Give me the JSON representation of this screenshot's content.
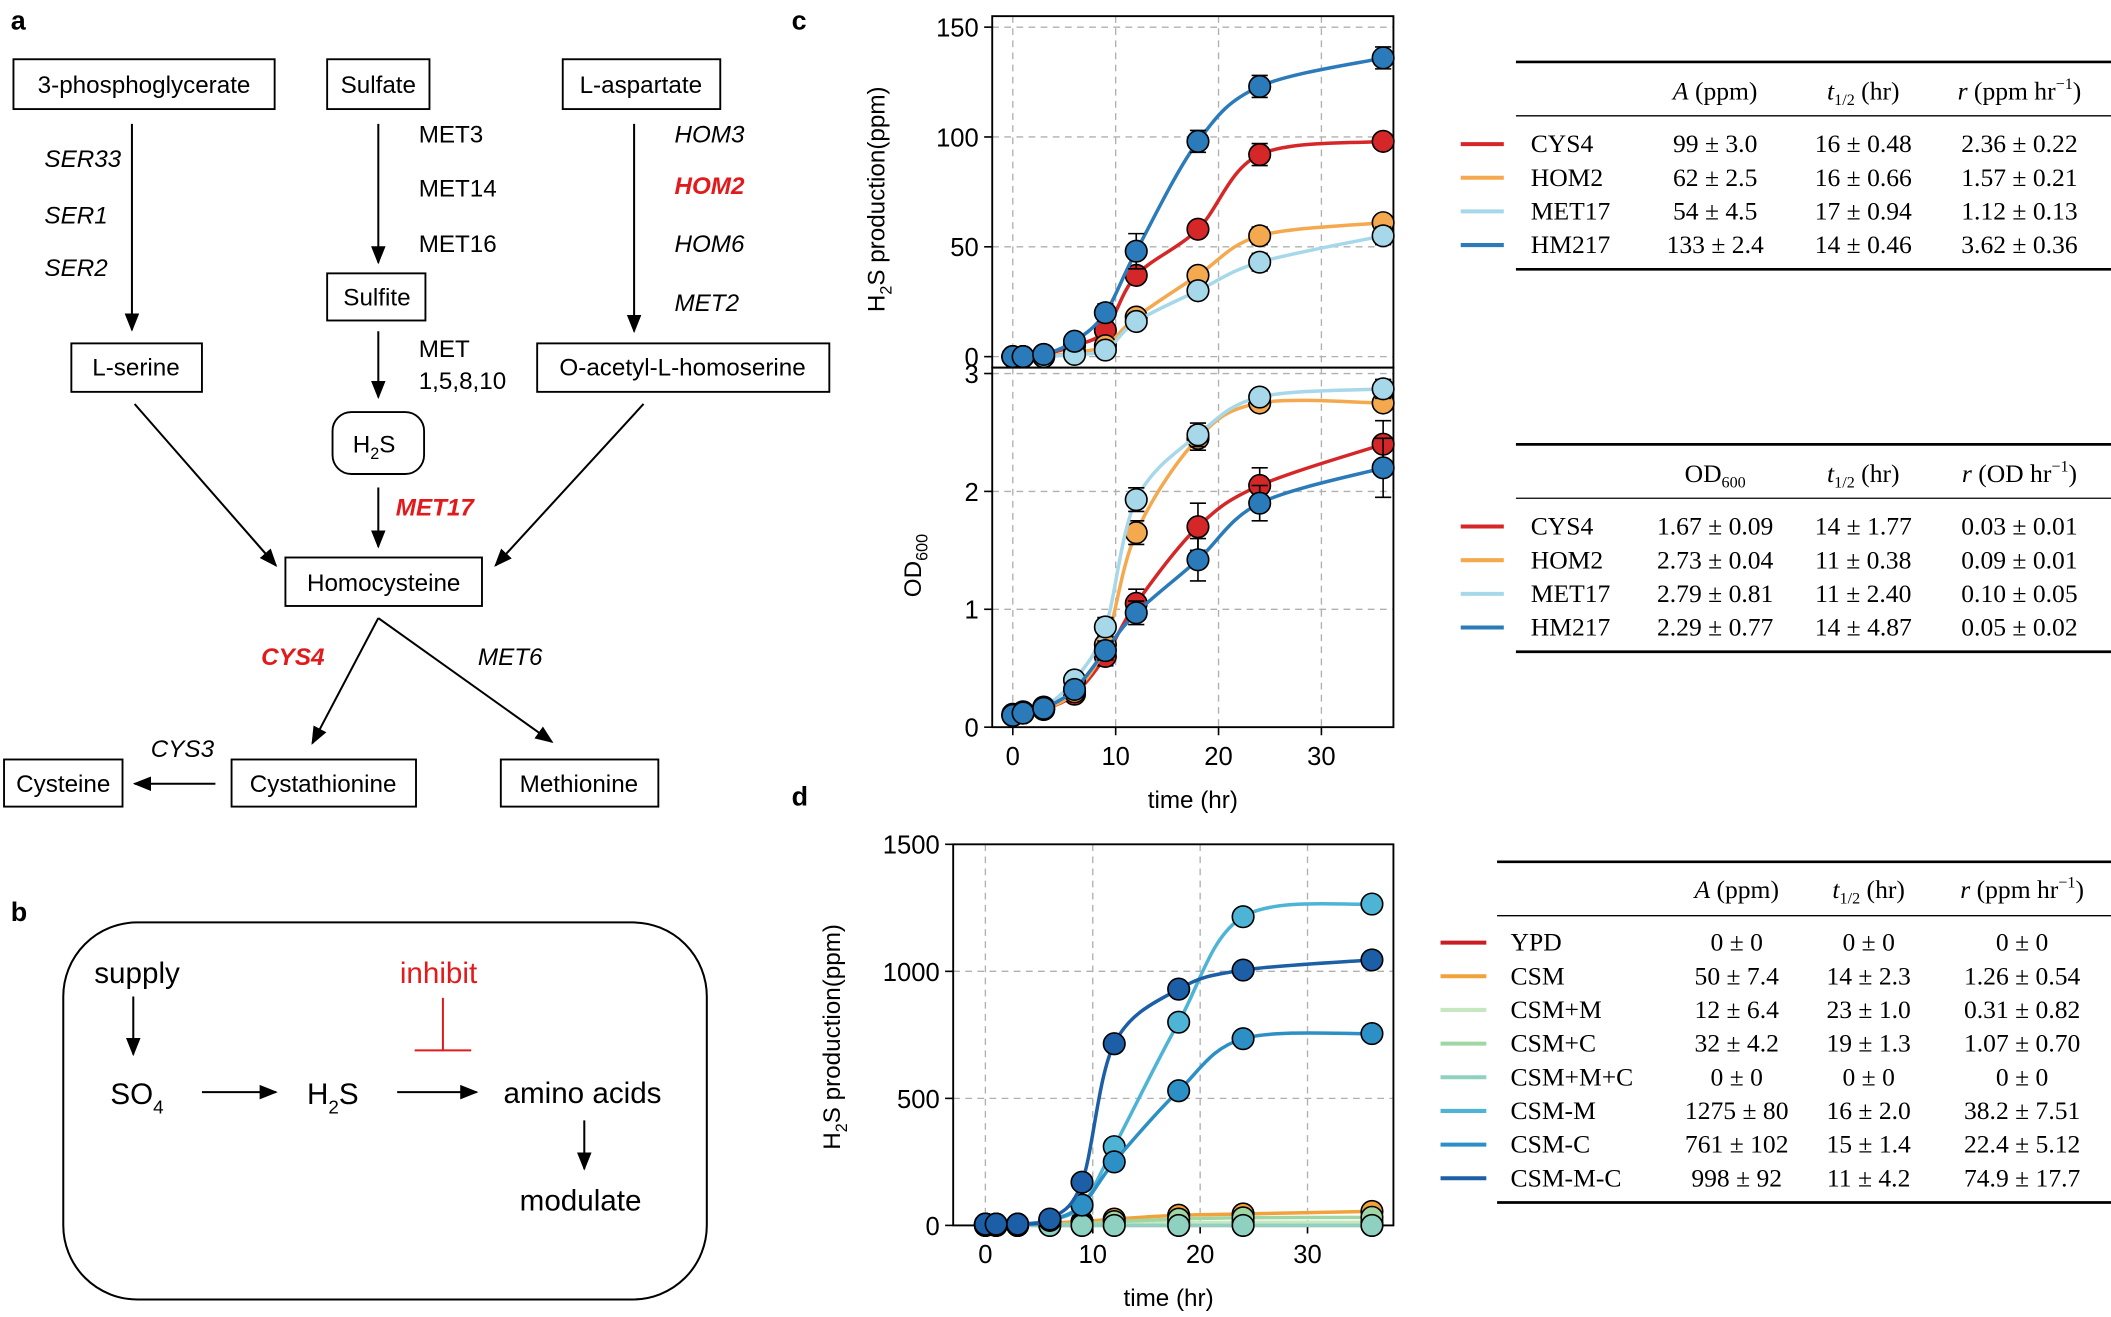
{
  "panel_labels": {
    "a": "a",
    "b": "b",
    "c": "c",
    "d": "d"
  },
  "pathway": {
    "phosphoglycerate": "3-phosphoglycerate",
    "sulfate": "Sulfate",
    "aspartate": "L-aspartate",
    "sulfite": "Sulfite",
    "serine": "L-serine",
    "acetylhomoserine": "O-acetyl-L-homoserine",
    "h2s_main": "H",
    "h2s_sub": "2",
    "h2s_tail": "S",
    "homocysteine": "Homocysteine",
    "cysteine": "Cysteine",
    "cystathionine": "Cystathionine",
    "methionine": "Methionine",
    "ser33": "SER33",
    "ser1": "SER1",
    "ser2": "SER2",
    "met3": "MET3",
    "met14": "MET14",
    "met16": "MET16",
    "met_multi_1": "MET",
    "met_multi_2": "1,5,8,10",
    "hom3": "HOM3",
    "hom2": "HOM2",
    "hom6": "HOM6",
    "met2": "MET2",
    "met17": "MET17",
    "cys4": "CYS4",
    "met6": "MET6",
    "cys3": "CYS3"
  },
  "scheme": {
    "supply": "supply",
    "inhibit": "inhibit",
    "so4_main": "SO",
    "so4_sub": "4",
    "h2s_main": "H",
    "h2s_sub": "2",
    "h2s_tail": "S",
    "amino_acids": "amino acids",
    "modulate": "modulate"
  },
  "colors": {
    "cys4": "#d62728",
    "hom2": "#f5a94f",
    "met17": "#a6d8ea",
    "hm217": "#2b7bba",
    "ypd": "#c81d25",
    "csm": "#f2a23a",
    "csm_m_light": "#c7e7c0",
    "csm_c": "#9fd6a4",
    "csm_mc": "#8fd1c0",
    "csm_m": "#4db4d6",
    "csm_cc": "#2c8fc5",
    "csm_m_c": "#1c5fa6",
    "highlight_gene": "#e31a1c"
  },
  "chart_data": [
    {
      "id": "c-top",
      "type": "line",
      "xlabel": "time (hr)",
      "ylabel": "H₂S production(ppm)",
      "ylabel_main": "H",
      "ylabel_sub": "2",
      "ylabel_rest": "S production(ppm)",
      "xlim": [
        -2,
        37
      ],
      "ylim": [
        -5,
        155
      ],
      "xticks": [
        0,
        10,
        20,
        30
      ],
      "yticks": [
        0,
        50,
        100,
        150
      ],
      "grid": true,
      "x": [
        0,
        1,
        3,
        6,
        9,
        12,
        18,
        24,
        36
      ],
      "series": [
        {
          "name": "CYS4",
          "color": "#d62728",
          "A": 99,
          "t_half": 16,
          "r": 2.36,
          "values": [
            0,
            0,
            1,
            5,
            12,
            37,
            58,
            92,
            98
          ],
          "err": [
            1,
            1,
            1,
            2,
            2,
            3,
            3,
            5,
            3
          ]
        },
        {
          "name": "HOM2",
          "color": "#f5a94f",
          "A": 62,
          "t_half": 16,
          "r": 1.57,
          "values": [
            0,
            0,
            0,
            2,
            5,
            18,
            37,
            55,
            61
          ],
          "err": [
            1,
            1,
            1,
            1,
            2,
            2,
            3,
            4,
            3
          ]
        },
        {
          "name": "MET17",
          "color": "#a6d8ea",
          "A": 54,
          "t_half": 17,
          "r": 1.12,
          "values": [
            0,
            0,
            0,
            1,
            3,
            16,
            30,
            43,
            55
          ],
          "err": [
            1,
            1,
            1,
            1,
            2,
            2,
            3,
            4,
            4
          ]
        },
        {
          "name": "HM217",
          "color": "#2b7bba",
          "A": 133,
          "t_half": 14,
          "r": 3.62,
          "values": [
            0,
            0,
            1,
            7,
            20,
            48,
            98,
            123,
            136
          ],
          "err": [
            1,
            1,
            1,
            3,
            4,
            8,
            5,
            5,
            5
          ]
        }
      ]
    },
    {
      "id": "c-bottom",
      "type": "line",
      "xlabel": "time (hr)",
      "ylabel_main": "OD",
      "ylabel_sub": "600",
      "xlim": [
        -2,
        37
      ],
      "ylim": [
        0,
        3.05
      ],
      "xticks": [
        0,
        10,
        20,
        30
      ],
      "yticks": [
        0,
        1,
        2,
        3
      ],
      "grid": true,
      "x": [
        0,
        1,
        3,
        6,
        9,
        12,
        18,
        24,
        36
      ],
      "series": [
        {
          "name": "CYS4",
          "color": "#d62728",
          "values": [
            0.1,
            0.12,
            0.15,
            0.28,
            0.6,
            1.05,
            1.7,
            2.05,
            2.4
          ],
          "err": [
            0.03,
            0.03,
            0.04,
            0.05,
            0.08,
            0.12,
            0.2,
            0.15,
            0.2
          ]
        },
        {
          "name": "HOM2",
          "color": "#f5a94f",
          "values": [
            0.1,
            0.12,
            0.15,
            0.3,
            0.7,
            1.65,
            2.45,
            2.75,
            2.75
          ],
          "err": [
            0.03,
            0.03,
            0.04,
            0.05,
            0.08,
            0.1,
            0.1,
            0.06,
            0.06
          ]
        },
        {
          "name": "MET17",
          "color": "#a6d8ea",
          "values": [
            0.11,
            0.13,
            0.17,
            0.4,
            0.85,
            1.93,
            2.48,
            2.8,
            2.87
          ],
          "err": [
            0.03,
            0.03,
            0.04,
            0.05,
            0.08,
            0.1,
            0.1,
            0.06,
            0.08
          ]
        },
        {
          "name": "HM217",
          "color": "#2b7bba",
          "values": [
            0.1,
            0.12,
            0.16,
            0.32,
            0.65,
            0.97,
            1.42,
            1.9,
            2.2
          ],
          "err": [
            0.03,
            0.03,
            0.04,
            0.05,
            0.08,
            0.1,
            0.18,
            0.15,
            0.25
          ]
        }
      ]
    },
    {
      "id": "d",
      "type": "line",
      "xlabel": "time (hr)",
      "ylabel_main": "H",
      "ylabel_sub": "2",
      "ylabel_rest": "S production(ppm)",
      "xlim": [
        -3,
        38
      ],
      "ylim": [
        0,
        1500
      ],
      "xticks": [
        0,
        10,
        20,
        30
      ],
      "yticks": [
        0,
        500,
        1000,
        1500
      ],
      "grid": true,
      "x": [
        0,
        1,
        3,
        6,
        9,
        12,
        18,
        24,
        36
      ],
      "series": [
        {
          "name": "YPD",
          "color": "#c81d25",
          "values": [
            0,
            0,
            0,
            0,
            0,
            0,
            0,
            0,
            0
          ]
        },
        {
          "name": "CSM",
          "color": "#f2a23a",
          "values": [
            5,
            5,
            5,
            10,
            15,
            25,
            40,
            45,
            55
          ]
        },
        {
          "name": "CSM+M",
          "color": "#c7e7c0",
          "values": [
            0,
            0,
            0,
            2,
            5,
            8,
            10,
            12,
            12
          ]
        },
        {
          "name": "CSM+C",
          "color": "#9fd6a4",
          "values": [
            0,
            0,
            0,
            3,
            6,
            15,
            25,
            30,
            32
          ]
        },
        {
          "name": "CSM+M+C",
          "color": "#8fd1c0",
          "values": [
            0,
            0,
            0,
            0,
            0,
            0,
            0,
            0,
            0
          ]
        },
        {
          "name": "CSM-M",
          "color": "#4db4d6",
          "values": [
            5,
            5,
            5,
            20,
            80,
            310,
            800,
            1215,
            1265
          ]
        },
        {
          "name": "CSM-C",
          "color": "#2c8fc5",
          "values": [
            5,
            5,
            5,
            20,
            80,
            250,
            530,
            735,
            755
          ]
        },
        {
          "name": "CSM-M-C",
          "color": "#1c5fa6",
          "values": [
            5,
            5,
            5,
            25,
            170,
            715,
            930,
            1005,
            1045
          ]
        }
      ]
    }
  ],
  "table_c_top": {
    "h1_main": "A",
    "h1_unit": " (ppm)",
    "h2_main": "t",
    "h2_sub": "1/2",
    "h2_unit": " (hr)",
    "h3_main": "r",
    "h3_unit": " (ppm hr",
    "h3_sup": "−1",
    "h3_close": ")",
    "rows": [
      {
        "name": "CYS4",
        "a": "99 ± 3.0",
        "t": "16 ± 0.48",
        "r": "2.36 ± 0.22"
      },
      {
        "name": "HOM2",
        "a": "62 ± 2.5",
        "t": "16 ± 0.66",
        "r": "1.57 ± 0.21"
      },
      {
        "name": "MET17",
        "a": "54 ± 4.5",
        "t": "17 ± 0.94",
        "r": "1.12 ± 0.13"
      },
      {
        "name": "HM217",
        "a": "133 ± 2.4",
        "t": "14 ± 0.46",
        "r": "3.62 ± 0.36"
      }
    ]
  },
  "table_c_bottom": {
    "h1_main": "OD",
    "h1_sub": "600",
    "h2_main": "t",
    "h2_sub": "1/2",
    "h2_unit": " (hr)",
    "h3_main": "r",
    "h3_unit": " (OD hr",
    "h3_sup": "−1",
    "h3_close": ")",
    "rows": [
      {
        "name": "CYS4",
        "a": "1.67 ± 0.09",
        "t": "14 ± 1.77",
        "r": "0.03 ± 0.01"
      },
      {
        "name": "HOM2",
        "a": "2.73 ± 0.04",
        "t": "11 ± 0.38",
        "r": "0.09 ± 0.01"
      },
      {
        "name": "MET17",
        "a": "2.79 ± 0.81",
        "t": "11 ± 2.40",
        "r": "0.10 ± 0.05"
      },
      {
        "name": "HM217",
        "a": "2.29 ± 0.77",
        "t": "14 ± 4.87",
        "r": "0.05 ± 0.02"
      }
    ]
  },
  "table_d": {
    "h1_main": "A",
    "h1_unit": " (ppm)",
    "h2_main": "t",
    "h2_sub": "1/2",
    "h2_unit": " (hr)",
    "h3_main": "r",
    "h3_unit": " (ppm hr",
    "h3_sup": "−1",
    "h3_close": ")",
    "rows": [
      {
        "name": "YPD",
        "a": "0 ± 0",
        "t": "0 ± 0",
        "r": "0 ± 0"
      },
      {
        "name": "CSM",
        "a": "50 ± 7.4",
        "t": "14 ± 2.3",
        "r": "1.26 ± 0.54"
      },
      {
        "name": "CSM+M",
        "a": "12 ± 6.4",
        "t": "23 ± 1.0",
        "r": "0.31 ± 0.82"
      },
      {
        "name": "CSM+C",
        "a": "32 ± 4.2",
        "t": "19 ± 1.3",
        "r": "1.07 ± 0.70"
      },
      {
        "name": "CSM+M+C",
        "a": "0 ± 0",
        "t": "0 ± 0",
        "r": "0 ± 0"
      },
      {
        "name": "CSM-M",
        "a": "1275 ± 80",
        "t": "16 ± 2.0",
        "r": "38.2 ± 7.51"
      },
      {
        "name": "CSM-C",
        "a": "761 ± 102",
        "t": "15 ± 1.4",
        "r": "22.4 ± 5.12"
      },
      {
        "name": "CSM-M-C",
        "a": "998 ± 92",
        "t": "11 ± 4.2",
        "r": "74.9 ± 17.7"
      }
    ]
  }
}
